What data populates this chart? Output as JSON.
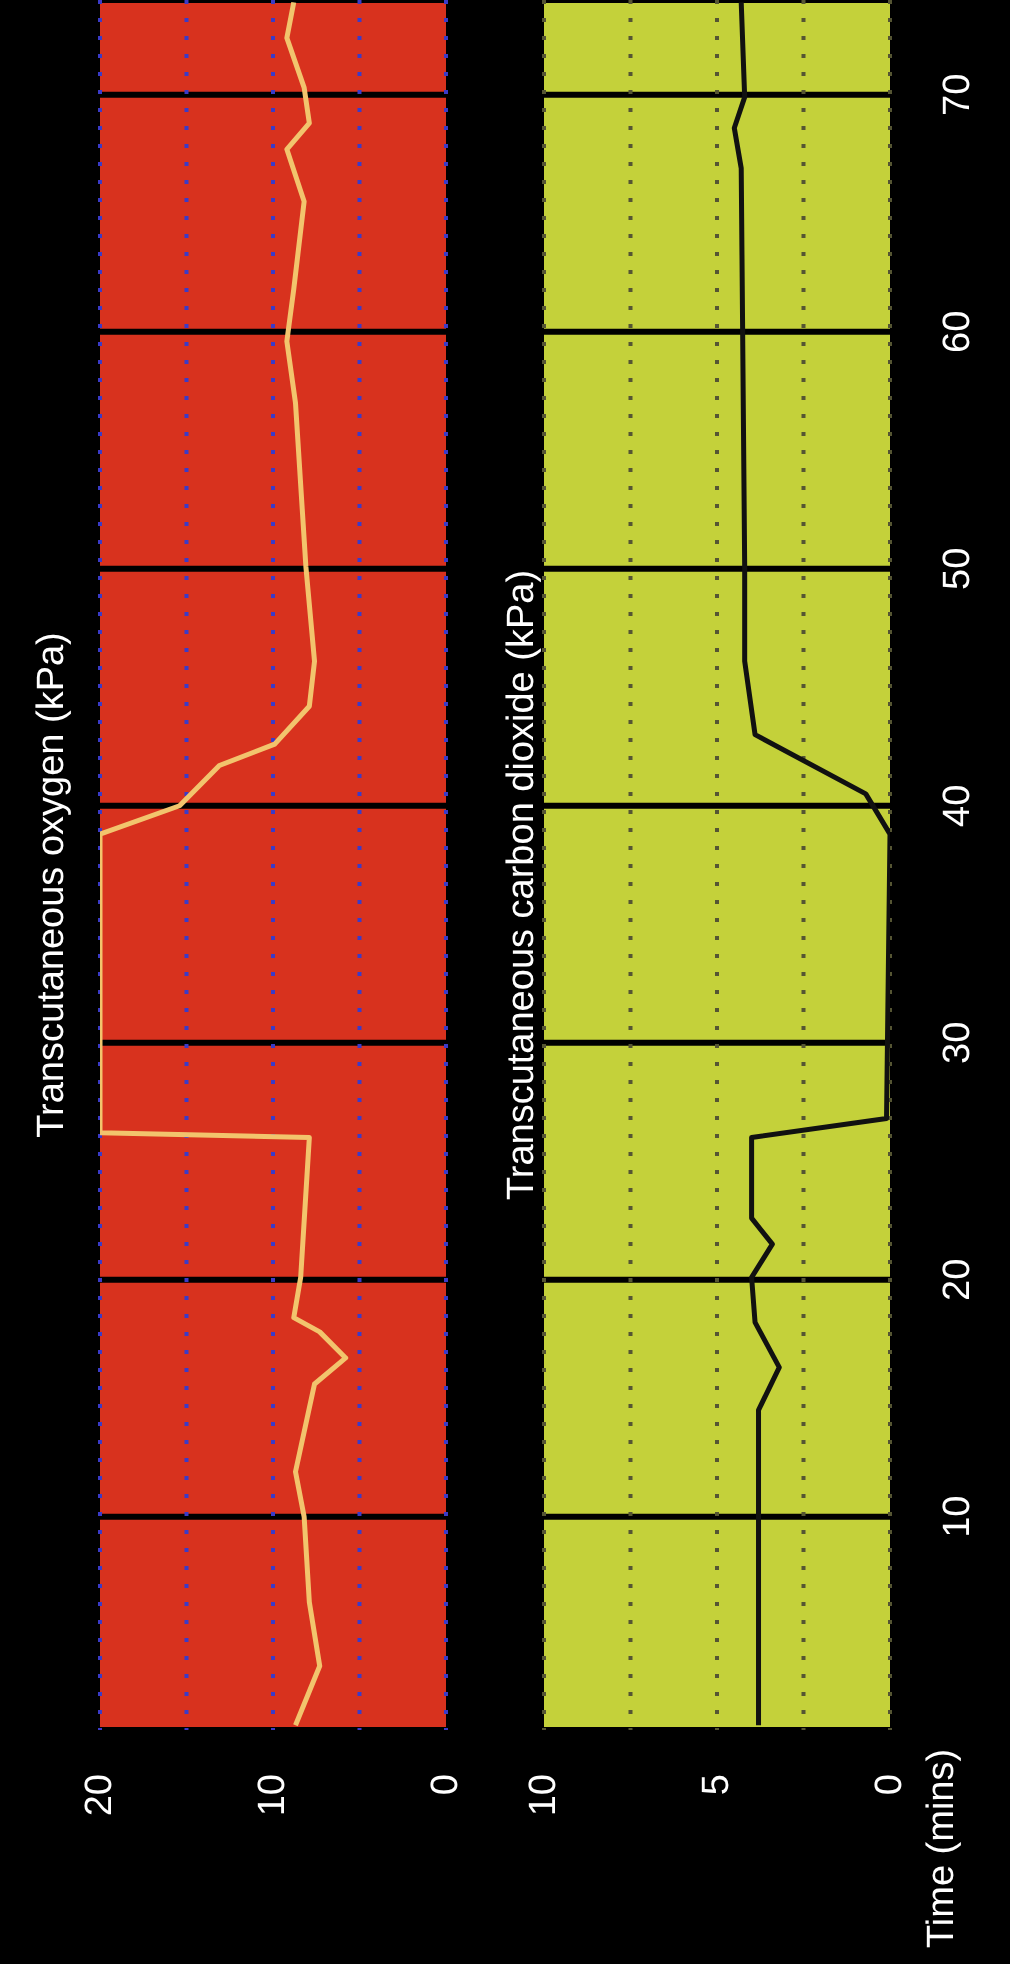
{
  "chart_data": [
    {
      "type": "line",
      "title": "Transcutaneous oxygen (kPa)",
      "xlim": [
        20,
        0
      ],
      "xticks": [
        20,
        {
          "value": 15,
          "label": null
        },
        10,
        {
          "value": 5,
          "label": null
        },
        0
      ],
      "ylim": [
        1,
        74
      ],
      "yticks": [
        10,
        20,
        30,
        40,
        50,
        60,
        70
      ],
      "grid": true,
      "tick_labels": "x",
      "series": [
        {
          "color": "#f2c46d",
          "values": [
            1.2,
            3.7,
            6.4,
            10,
            11.9,
            15.6,
            16.7,
            17.8,
            18.4,
            20.1,
            26,
            26.2,
            38.8,
            40,
            41.7,
            42.6,
            44.2,
            46.1,
            50.1,
            57,
            59.6,
            61.8,
            65.5,
            67.7,
            68.8,
            70.3,
            72.4,
            73.9
          ],
          "x": [
            8.7,
            7.3,
            7.9,
            8.2,
            8.7,
            7.6,
            5.8,
            7.3,
            8.8,
            8.4,
            7.9,
            20,
            20,
            15.4,
            13.1,
            9.9,
            7.9,
            7.6,
            8.1,
            8.7,
            9.2,
            8.8,
            8.2,
            9.2,
            7.9,
            8.2,
            9.2,
            8.8
          ]
        }
      ]
    },
    {
      "type": "line",
      "title": "Transcutaneous carbon dioxide (kPa)",
      "ylabel": "Time (mins)",
      "xlim": [
        10,
        0
      ],
      "xticks": [
        10,
        {
          "value": 7.5,
          "label": null
        },
        5,
        {
          "value": 2.5,
          "label": null
        },
        0
      ],
      "ylim": [
        1,
        74
      ],
      "yticks": [
        10,
        20,
        30,
        40,
        50,
        60,
        70
      ],
      "grid": true,
      "series": [
        {
          "color": "#111111",
          "values": [
            1.2,
            10,
            14.5,
            16.3,
            18.2,
            20.1,
            21.5,
            22.6,
            26,
            26.8,
            38.8,
            40.5,
            43,
            46.1,
            50.1,
            66.9,
            68.6,
            69.9,
            73.9
          ],
          "x": [
            3.8,
            3.8,
            3.8,
            3.2,
            3.9,
            4.0,
            3.4,
            4.0,
            4.0,
            0.1,
            0,
            0.7,
            3.9,
            4.2,
            4.2,
            4.3,
            4.5,
            4.2,
            4.3
          ]
        }
      ]
    }
  ]
}
